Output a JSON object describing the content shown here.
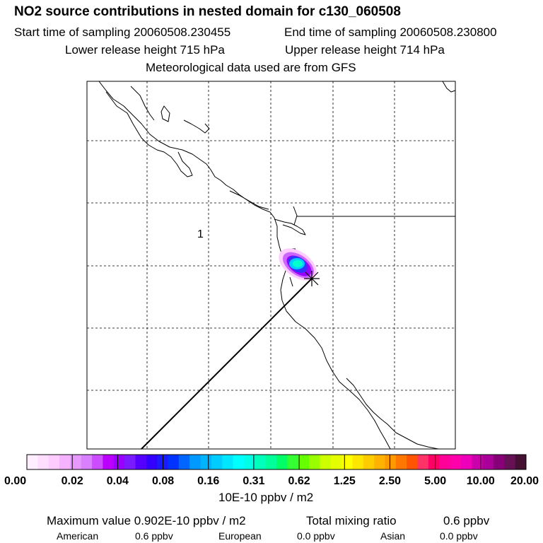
{
  "header": {
    "title": "NO2 source contributions in nested domain for c130_060508",
    "start_label": "Start time of sampling 20060508.230455",
    "end_label": "End time of sampling 20060508.230800",
    "lower_label": "Lower release height  715 hPa",
    "upper_label": "Upper release height  714 hPa",
    "met_label": "Meteorological data used are from GFS"
  },
  "map": {
    "region_marker": "1",
    "plume_colors": [
      "#ffccff",
      "#cc66ff",
      "#9900ff",
      "#3333ff",
      "#00ccff",
      "#00ffcc"
    ]
  },
  "colorbar": {
    "colors": [
      "#ffeeff",
      "#ffddff",
      "#ffccff",
      "#f5b3ff",
      "#e699ff",
      "#d980ff",
      "#cc4dff",
      "#bb00ff",
      "#9900ff",
      "#7a1aff",
      "#5500ff",
      "#3300ff",
      "#1a1aff",
      "#0033ff",
      "#0066ff",
      "#0099ff",
      "#00b3ff",
      "#00ccff",
      "#00e6ff",
      "#00ffff",
      "#00ffe6",
      "#00ffbb",
      "#00ff99",
      "#00ff66",
      "#33ff33",
      "#66ff00",
      "#99ff00",
      "#ccff00",
      "#e6ff00",
      "#ffff00",
      "#ffe600",
      "#ffcc00",
      "#ffb300",
      "#ff9900",
      "#ff7700",
      "#ff5500",
      "#ff3366",
      "#ff0066",
      "#ff0099",
      "#ff00aa",
      "#ee00bb",
      "#cc00aa",
      "#aa0099",
      "#880077",
      "#661155",
      "#441133"
    ],
    "ticks": [
      "0.00",
      "0.02",
      "0.04",
      "0.08",
      "0.16",
      "0.31",
      "0.62",
      "1.25",
      "2.50",
      "5.00",
      "10.00",
      "20.00"
    ],
    "units": "10E-10 ppbv / m2"
  },
  "footer": {
    "max_label": "Maximum value  0.902E-10 ppbv / m2",
    "total_label": "Total mixing ratio",
    "total_value": "0.6 ppbv",
    "american_label": "American",
    "american_value": "0.6 ppbv",
    "european_label": "European",
    "european_value": "0.0 ppbv",
    "asian_label": "Asian",
    "asian_value": "0.0 ppbv"
  }
}
